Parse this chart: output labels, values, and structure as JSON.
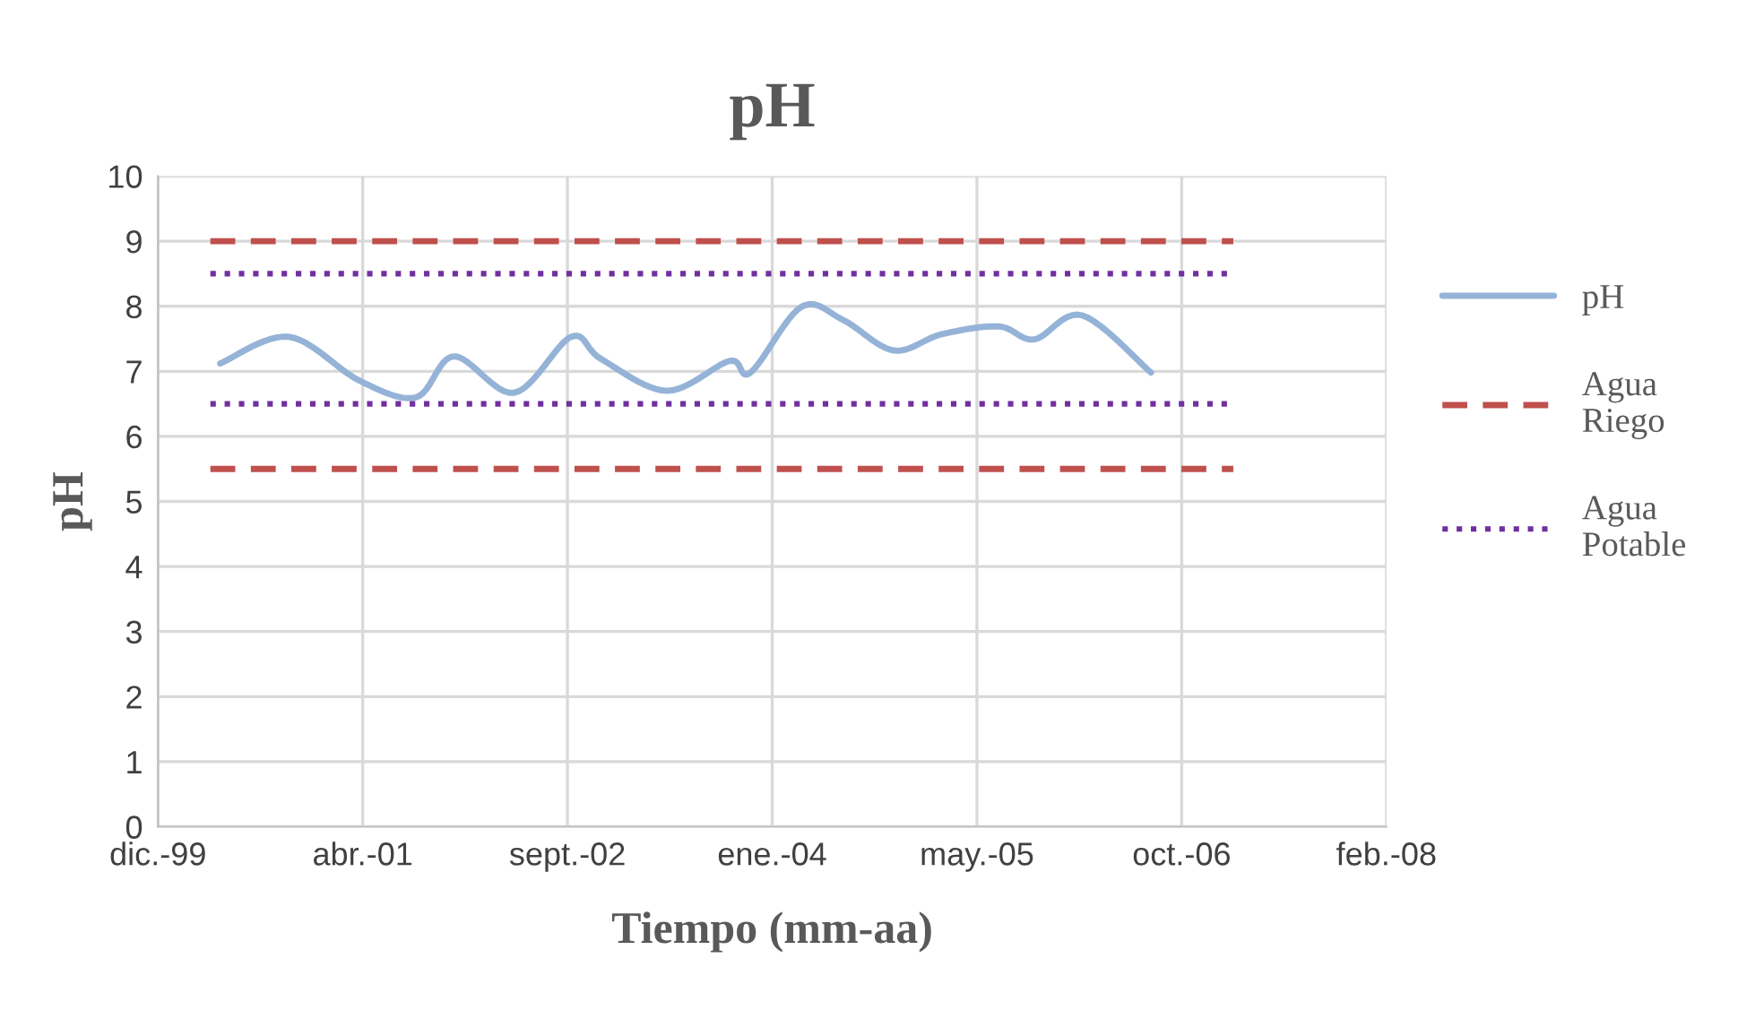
{
  "chart_data": {
    "type": "line",
    "title": "pH",
    "xlabel": "Tiempo (mm-aa)",
    "ylabel": "pH",
    "xlim": [
      "1999-12-06",
      "2008-02-22"
    ],
    "xticks": [
      {
        "value": "1999-12-06",
        "label": "dic.-99"
      },
      {
        "value": "2001-04-19",
        "label": "abr.-01"
      },
      {
        "value": "2002-09-01",
        "label": "sept.-02"
      },
      {
        "value": "2004-01-14",
        "label": "ene.-04"
      },
      {
        "value": "2005-05-28",
        "label": "may.-05"
      },
      {
        "value": "2006-10-10",
        "label": "oct.-06"
      },
      {
        "value": "2008-02-22",
        "label": "feb.-08"
      }
    ],
    "ylim": [
      0,
      10
    ],
    "yticks": [
      0,
      1,
      2,
      3,
      4,
      5,
      6,
      7,
      8,
      9,
      10
    ],
    "grid": true,
    "legend": "right",
    "series": [
      {
        "name": "pH",
        "color": "#95b3d7",
        "line_style": "solid",
        "x": [
          "2000-05-06",
          "2000-10-21",
          "2001-04-10",
          "2001-08-27",
          "2001-11-28",
          "2002-04-24",
          "2002-09-10",
          "2002-11-22",
          "2003-05-02",
          "2003-10-02",
          "2003-11-22",
          "2004-03-25",
          "2004-07-05",
          "2004-11-06",
          "2005-03-03",
          "2005-07-20",
          "2005-10-15",
          "2006-02-09",
          "2006-07-27"
        ],
        "values": [
          7.12,
          7.53,
          6.86,
          6.6,
          7.23,
          6.67,
          7.53,
          7.19,
          6.7,
          7.16,
          6.98,
          7.99,
          7.79,
          7.32,
          7.57,
          7.69,
          7.49,
          7.86,
          6.98
        ]
      },
      {
        "name": "Agua Riego",
        "color": "#c0504d",
        "line_style": "dashed",
        "x": [
          "2000-04-12",
          "2007-02-13"
        ],
        "values": [
          9,
          9
        ]
      },
      {
        "color": "#c0504d",
        "line_style": "dashed",
        "x": [
          "2000-04-12",
          "2007-02-13"
        ],
        "values": [
          5.5,
          5.5
        ]
      },
      {
        "name": "Agua Potable",
        "color": "#7030a0",
        "line_style": "dotted",
        "x": [
          "2000-04-12",
          "2007-02-13"
        ],
        "values": [
          8.5,
          8.5
        ]
      },
      {
        "color": "#7030a0",
        "line_style": "dotted",
        "x": [
          "2000-04-12",
          "2007-02-13"
        ],
        "values": [
          6.5,
          6.5
        ]
      }
    ]
  }
}
